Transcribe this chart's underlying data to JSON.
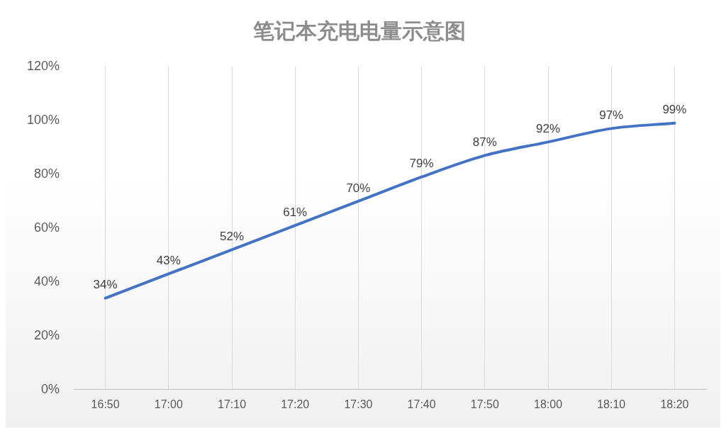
{
  "chart_data": {
    "type": "line",
    "title": "笔记本充电电量示意图",
    "categories": [
      "16:50",
      "17:00",
      "17:10",
      "17:20",
      "17:30",
      "17:40",
      "17:50",
      "18:00",
      "18:10",
      "18:20"
    ],
    "series": [
      {
        "color": "#4472c4",
        "values": [
          34,
          43,
          52,
          61,
          70,
          79,
          87,
          92,
          97,
          99
        ],
        "value_labels": [
          "34%",
          "43%",
          "52%",
          "61%",
          "70%",
          "79%",
          "87%",
          "92%",
          "97%",
          "99%"
        ]
      }
    ],
    "ylim": [
      0,
      120
    ],
    "yticks": [
      {
        "value": 0,
        "label": "0%"
      },
      {
        "value": 20,
        "label": "20%"
      },
      {
        "value": 40,
        "label": "40%"
      },
      {
        "value": 60,
        "label": "60%"
      },
      {
        "value": 80,
        "label": "80%"
      },
      {
        "value": 100,
        "label": "100%"
      },
      {
        "value": 120,
        "label": "120%"
      }
    ],
    "grid": "x",
    "legend": false,
    "marker": "none",
    "line_style": "solid"
  }
}
